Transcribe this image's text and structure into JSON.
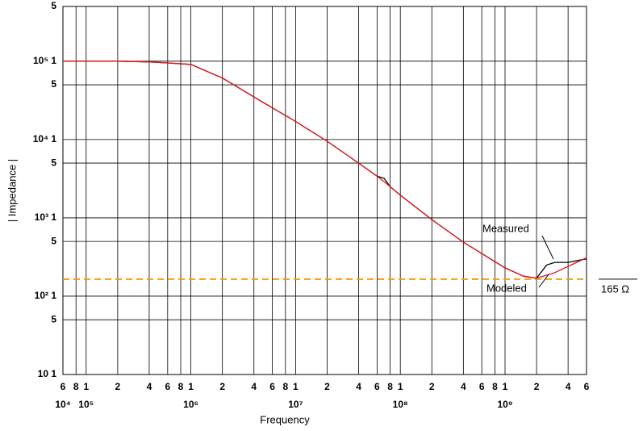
{
  "chart_data": {
    "type": "line",
    "xlabel": "Frequency",
    "ylabel": "| Impedance |",
    "xscale": "log",
    "yscale": "log",
    "grid": true,
    "xlim": [
      60000,
      6000000000
    ],
    "ylim": [
      10,
      500000
    ],
    "x": [
      60000,
      200000,
      400000,
      600000,
      1000000,
      2000000,
      4000000,
      10000000,
      20000000,
      40000000,
      60000000,
      70000000,
      80000000,
      100000000,
      200000000,
      400000000,
      1000000000,
      1500000000,
      2000000000,
      2500000000,
      3000000000,
      4000000000,
      6000000000
    ],
    "series": [
      {
        "name": "Measured",
        "color": "#000000",
        "values": [
          100000,
          100000,
          98000,
          95000,
          91000,
          61000,
          35000,
          17000,
          9500,
          5000,
          3400,
          3200,
          2500,
          1950,
          950,
          490,
          230,
          180,
          170,
          250,
          270,
          270,
          300
        ]
      },
      {
        "name": "Modeled",
        "color": "#e8141b",
        "values": [
          100000,
          100000,
          98000,
          95000,
          91000,
          61000,
          35000,
          17000,
          9500,
          5000,
          3400,
          2900,
          2500,
          1950,
          950,
          490,
          230,
          180,
          170,
          185,
          200,
          240,
          310
        ]
      }
    ],
    "reference_line": {
      "value": 165,
      "label": "165 Ω",
      "color": "#f39c12"
    },
    "yticks": [
      {
        "value": 500000,
        "label": "5"
      },
      {
        "value": 100000,
        "label": "10⁵ 1"
      },
      {
        "value": 50000,
        "label": "5"
      },
      {
        "value": 10000,
        "label": "10⁴ 1"
      },
      {
        "value": 5000,
        "label": "5"
      },
      {
        "value": 1000,
        "label": "10³ 1"
      },
      {
        "value": 500,
        "label": "5"
      },
      {
        "value": 100,
        "label": "10² 1"
      },
      {
        "value": 50,
        "label": "5"
      },
      {
        "value": 10,
        "label": "10 1"
      }
    ],
    "xticks": [
      {
        "value": 60000,
        "label": "6"
      },
      {
        "value": 80000,
        "label": "8"
      },
      {
        "value": 100000,
        "label": "1"
      },
      {
        "value": 200000,
        "label": "2"
      },
      {
        "value": 400000,
        "label": "4"
      },
      {
        "value": 600000,
        "label": "6"
      },
      {
        "value": 800000,
        "label": "8"
      },
      {
        "value": 1000000,
        "label": "1"
      },
      {
        "value": 2000000,
        "label": "2"
      },
      {
        "value": 4000000,
        "label": "4"
      },
      {
        "value": 6000000,
        "label": "6"
      },
      {
        "value": 8000000,
        "label": "8"
      },
      {
        "value": 10000000,
        "label": "1"
      },
      {
        "value": 20000000,
        "label": "2"
      },
      {
        "value": 40000000,
        "label": "4"
      },
      {
        "value": 60000000,
        "label": "6"
      },
      {
        "value": 80000000,
        "label": "8"
      },
      {
        "value": 100000000,
        "label": "1"
      },
      {
        "value": 200000000,
        "label": "2"
      },
      {
        "value": 400000000,
        "label": "4"
      },
      {
        "value": 600000000,
        "label": "6"
      },
      {
        "value": 800000000,
        "label": "8"
      },
      {
        "value": 1000000000,
        "label": "1"
      },
      {
        "value": 2000000000,
        "label": "2"
      },
      {
        "value": 4000000000,
        "label": "4"
      },
      {
        "value": 6000000000,
        "label": "6"
      }
    ],
    "xdecades": [
      {
        "value": 10000,
        "label": "10⁴"
      },
      {
        "value": 100000,
        "label": "10⁵"
      },
      {
        "value": 1000000,
        "label": "10⁶"
      },
      {
        "value": 10000000,
        "label": "10⁷"
      },
      {
        "value": 100000000,
        "label": "10⁸"
      },
      {
        "value": 1000000000,
        "label": "10⁹"
      }
    ]
  }
}
